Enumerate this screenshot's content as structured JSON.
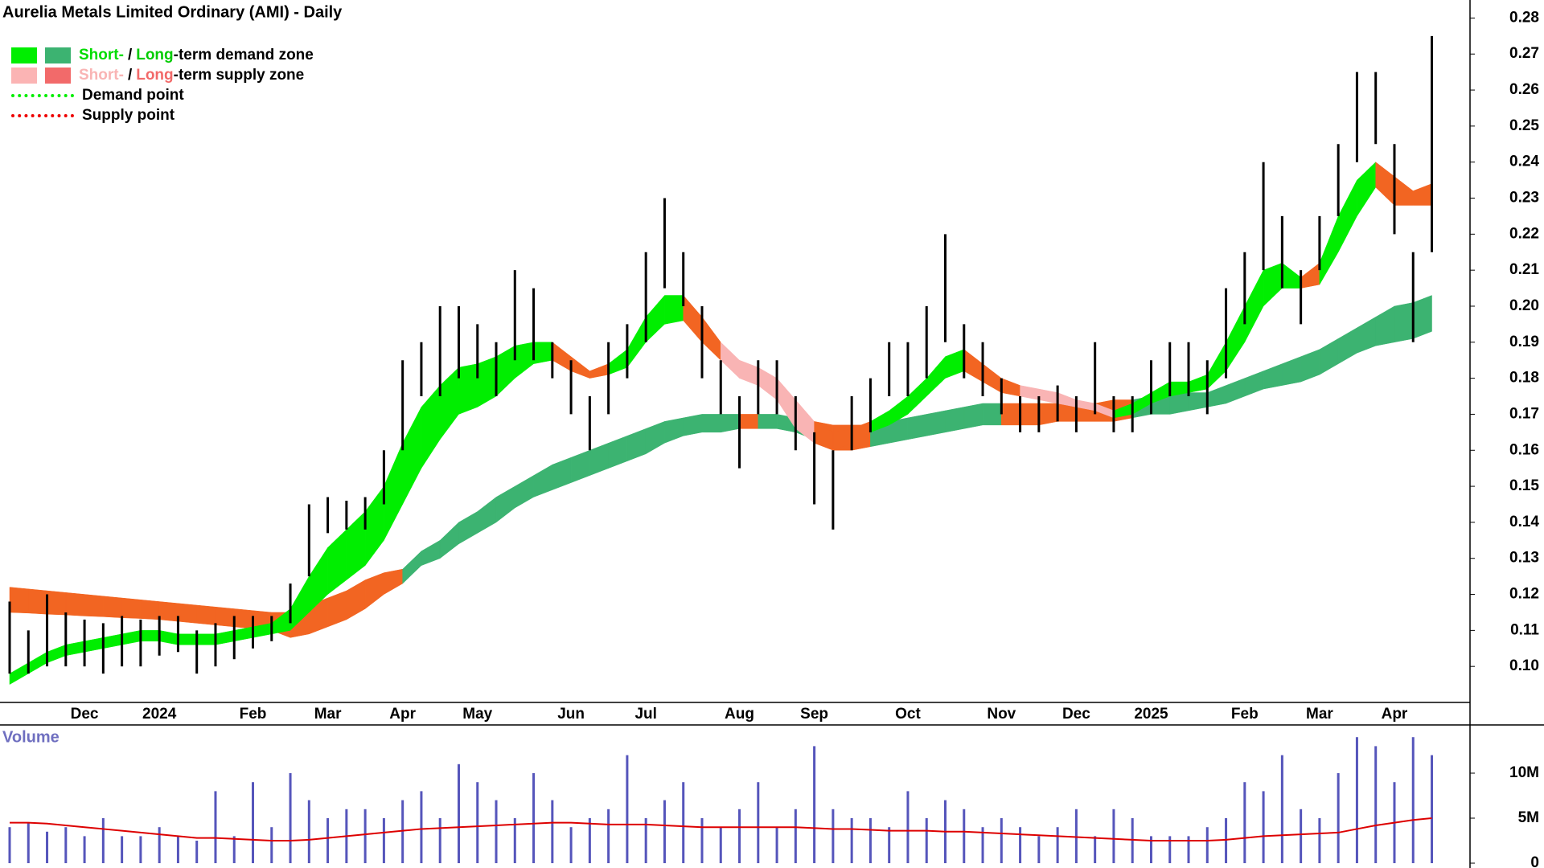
{
  "chart_data": [
    {
      "type": "ohlc",
      "title": "Aurelia Metals Limited Ordinary (AMI) - Daily",
      "legend": [
        {
          "parts": [
            "Short-",
            "/",
            "Long",
            "-term demand zone"
          ]
        },
        {
          "parts": [
            "Short-",
            "/",
            "Long",
            "-term supply zone"
          ]
        },
        {
          "label": "Demand point"
        },
        {
          "label": "Supply point"
        }
      ],
      "categories": [
        null,
        null,
        null,
        null,
        "Dec",
        null,
        null,
        null,
        "2024",
        null,
        null,
        null,
        null,
        "Feb",
        null,
        null,
        null,
        "Mar",
        null,
        null,
        null,
        "Apr",
        null,
        null,
        null,
        "May",
        null,
        null,
        null,
        null,
        "Jun",
        null,
        null,
        null,
        "Jul",
        null,
        null,
        null,
        null,
        "Aug",
        null,
        null,
        null,
        "Sep",
        null,
        null,
        null,
        null,
        "Oct",
        null,
        null,
        null,
        null,
        "Nov",
        null,
        null,
        null,
        "Dec",
        null,
        null,
        null,
        "2025",
        null,
        null,
        null,
        null,
        "Feb",
        null,
        null,
        null,
        "Mar",
        null,
        null,
        null,
        "Apr",
        null,
        null
      ],
      "high": [
        0.118,
        0.11,
        0.12,
        0.115,
        0.113,
        0.112,
        0.114,
        0.113,
        0.114,
        0.114,
        0.11,
        0.112,
        0.114,
        0.114,
        0.114,
        0.123,
        0.145,
        0.147,
        0.146,
        0.147,
        0.16,
        0.185,
        0.19,
        0.2,
        0.2,
        0.195,
        0.19,
        0.21,
        0.205,
        0.19,
        0.185,
        0.175,
        0.19,
        0.195,
        0.215,
        0.23,
        0.215,
        0.2,
        0.185,
        0.175,
        0.185,
        0.185,
        0.175,
        0.165,
        0.16,
        0.175,
        0.18,
        0.19,
        0.19,
        0.2,
        0.22,
        0.195,
        0.19,
        0.18,
        0.175,
        0.175,
        0.178,
        0.175,
        0.19,
        0.175,
        0.175,
        0.185,
        0.19,
        0.19,
        0.185,
        0.205,
        0.215,
        0.24,
        0.225,
        0.21,
        0.225,
        0.245,
        0.265,
        0.265,
        0.245,
        0.215,
        0.275
      ],
      "low": [
        0.098,
        0.098,
        0.1,
        0.1,
        0.1,
        0.098,
        0.1,
        0.1,
        0.103,
        0.104,
        0.098,
        0.1,
        0.102,
        0.105,
        0.107,
        0.112,
        0.125,
        0.137,
        0.138,
        0.138,
        0.145,
        0.16,
        0.175,
        0.175,
        0.18,
        0.18,
        0.175,
        0.185,
        0.185,
        0.18,
        0.17,
        0.16,
        0.17,
        0.18,
        0.19,
        0.205,
        0.2,
        0.18,
        0.17,
        0.155,
        0.17,
        0.17,
        0.16,
        0.145,
        0.138,
        0.16,
        0.165,
        0.175,
        0.175,
        0.18,
        0.19,
        0.18,
        0.175,
        0.17,
        0.165,
        0.165,
        0.168,
        0.165,
        0.17,
        0.165,
        0.165,
        0.17,
        0.175,
        0.175,
        0.17,
        0.18,
        0.195,
        0.21,
        0.205,
        0.195,
        0.21,
        0.225,
        0.24,
        0.245,
        0.22,
        0.19,
        0.215
      ],
      "bar_color": "#000000",
      "long_term_zone": {
        "lower": [
          0.115,
          0.1148,
          0.1145,
          0.1143,
          0.114,
          0.1138,
          0.1135,
          0.1133,
          0.113,
          0.1125,
          0.112,
          0.1115,
          0.111,
          0.1105,
          0.11,
          0.108,
          0.109,
          0.111,
          0.113,
          0.116,
          0.12,
          0.123,
          0.128,
          0.13,
          0.134,
          0.137,
          0.14,
          0.144,
          0.147,
          0.149,
          0.151,
          0.153,
          0.155,
          0.157,
          0.159,
          0.162,
          0.164,
          0.165,
          0.165,
          0.166,
          0.166,
          0.166,
          0.165,
          0.163,
          0.16,
          0.16,
          0.161,
          0.162,
          0.163,
          0.164,
          0.165,
          0.166,
          0.167,
          0.167,
          0.167,
          0.167,
          0.168,
          0.168,
          0.168,
          0.168,
          0.169,
          0.17,
          0.17,
          0.171,
          0.172,
          0.173,
          0.175,
          0.177,
          0.178,
          0.179,
          0.181,
          0.184,
          0.187,
          0.189,
          0.19,
          0.191,
          0.193
        ],
        "upper": [
          0.122,
          0.1215,
          0.121,
          0.1205,
          0.12,
          0.1195,
          0.119,
          0.1185,
          0.118,
          0.1175,
          0.117,
          0.1165,
          0.116,
          0.1155,
          0.115,
          0.115,
          0.117,
          0.119,
          0.121,
          0.124,
          0.126,
          0.127,
          0.132,
          0.135,
          0.14,
          0.143,
          0.147,
          0.15,
          0.153,
          0.156,
          0.158,
          0.16,
          0.162,
          0.164,
          0.166,
          0.168,
          0.169,
          0.17,
          0.17,
          0.17,
          0.17,
          0.17,
          0.169,
          0.168,
          0.167,
          0.167,
          0.167,
          0.168,
          0.169,
          0.17,
          0.171,
          0.172,
          0.173,
          0.173,
          0.173,
          0.173,
          0.173,
          0.173,
          0.173,
          0.174,
          0.174,
          0.175,
          0.175,
          0.176,
          0.176,
          0.178,
          0.18,
          0.182,
          0.184,
          0.186,
          0.188,
          0.191,
          0.194,
          0.197,
          0.2,
          0.201,
          0.203
        ],
        "colors": [
          "#f26522",
          "#f26522",
          "#f26522",
          "#f26522",
          "#f26522",
          "#f26522",
          "#f26522",
          "#f26522",
          "#f26522",
          "#f26522",
          "#f26522",
          "#f26522",
          "#f26522",
          "#f26522",
          "#f26522",
          "#f26522",
          "#f26522",
          "#f26522",
          "#f26522",
          "#f26522",
          "#f26522",
          "#3cb371",
          "#3cb371",
          "#3cb371",
          "#3cb371",
          "#3cb371",
          "#3cb371",
          "#3cb371",
          "#3cb371",
          "#3cb371",
          "#3cb371",
          "#3cb371",
          "#3cb371",
          "#3cb371",
          "#3cb371",
          "#3cb371",
          "#3cb371",
          "#3cb371",
          "#3cb371",
          "#f26522",
          "#3cb371",
          "#3cb371",
          "#3cb371",
          "#f26522",
          "#f26522",
          "#f26522",
          "#3cb371",
          "#3cb371",
          "#3cb371",
          "#3cb371",
          "#3cb371",
          "#3cb371",
          "#3cb371",
          "#f26522",
          "#f26522",
          "#f26522",
          "#f26522",
          "#f26522",
          "#f26522",
          "#f26522",
          "#3cb371",
          "#3cb371",
          "#3cb371",
          "#3cb371",
          "#3cb371",
          "#3cb371",
          "#3cb371",
          "#3cb371",
          "#3cb371",
          "#3cb371",
          "#3cb371",
          "#3cb371",
          "#3cb371",
          "#3cb371",
          "#3cb371",
          "#3cb371"
        ]
      },
      "short_term_zone": {
        "lower": [
          0.095,
          0.098,
          0.101,
          0.103,
          0.104,
          0.105,
          0.106,
          0.107,
          0.107,
          0.106,
          0.106,
          0.106,
          0.107,
          0.108,
          0.109,
          0.11,
          0.115,
          0.12,
          0.124,
          0.128,
          0.135,
          0.145,
          0.155,
          0.163,
          0.17,
          0.172,
          0.175,
          0.18,
          0.184,
          0.185,
          0.182,
          0.18,
          0.181,
          0.183,
          0.19,
          0.195,
          0.196,
          0.19,
          0.185,
          0.18,
          0.178,
          0.174,
          0.166,
          0.162,
          0.16,
          0.162,
          0.165,
          0.167,
          0.17,
          0.175,
          0.18,
          0.182,
          0.179,
          0.176,
          0.175,
          0.174,
          0.173,
          0.172,
          0.171,
          0.169,
          0.17,
          0.173,
          0.175,
          0.176,
          0.177,
          0.182,
          0.19,
          0.2,
          0.205,
          0.205,
          0.206,
          0.215,
          0.225,
          0.233,
          0.228,
          0.228,
          0.228
        ],
        "upper": [
          0.098,
          0.101,
          0.104,
          0.106,
          0.107,
          0.108,
          0.109,
          0.11,
          0.11,
          0.109,
          0.109,
          0.109,
          0.11,
          0.111,
          0.112,
          0.116,
          0.125,
          0.133,
          0.138,
          0.143,
          0.15,
          0.162,
          0.172,
          0.178,
          0.183,
          0.184,
          0.186,
          0.189,
          0.19,
          0.19,
          0.186,
          0.182,
          0.184,
          0.188,
          0.197,
          0.203,
          0.203,
          0.197,
          0.19,
          0.185,
          0.183,
          0.18,
          0.174,
          0.168,
          0.165,
          0.166,
          0.168,
          0.171,
          0.175,
          0.18,
          0.186,
          0.188,
          0.184,
          0.18,
          0.178,
          0.177,
          0.176,
          0.174,
          0.173,
          0.171,
          0.173,
          0.176,
          0.179,
          0.179,
          0.181,
          0.19,
          0.2,
          0.21,
          0.212,
          0.208,
          0.212,
          0.225,
          0.235,
          0.24,
          0.236,
          0.232,
          0.234
        ],
        "colors": [
          "#00ee00",
          "#00ee00",
          "#00ee00",
          "#00ee00",
          "#00ee00",
          "#00ee00",
          "#00ee00",
          "#00ee00",
          "#00ee00",
          "#00ee00",
          "#00ee00",
          "#00ee00",
          "#00ee00",
          "#00ee00",
          "#00ee00",
          "#00ee00",
          "#00ee00",
          "#00ee00",
          "#00ee00",
          "#00ee00",
          "#00ee00",
          "#00ee00",
          "#00ee00",
          "#00ee00",
          "#00ee00",
          "#00ee00",
          "#00ee00",
          "#00ee00",
          "#00ee00",
          "#f26522",
          "#f26522",
          "#f26522",
          "#00ee00",
          "#00ee00",
          "#00ee00",
          "#00ee00",
          "#f26522",
          "#f26522",
          "#f9b4b4",
          "#f9b4b4",
          "#f9b4b4",
          "#f9b4b4",
          "#f9b4b4",
          "#f26522",
          "#f26522",
          "#f26522",
          "#00ee00",
          "#00ee00",
          "#00ee00",
          "#00ee00",
          "#00ee00",
          "#f26522",
          "#f26522",
          "#f26522",
          "#f9b4b4",
          "#f9b4b4",
          "#f9b4b4",
          "#f9b4b4",
          "#f9b4b4",
          "#00ee00",
          "#00ee00",
          "#00ee00",
          "#00ee00",
          "#00ee00",
          "#00ee00",
          "#00ee00",
          "#00ee00",
          "#00ee00",
          "#00ee00",
          "#f26522",
          "#00ee00",
          "#00ee00",
          "#00ee00",
          "#f26522",
          "#f26522",
          "#f26522"
        ]
      },
      "ylim": [
        0.09,
        0.285
      ],
      "yticks": [
        {
          "value": 0.1,
          "label": "0.10"
        },
        0.11,
        0.12,
        0.13,
        0.14,
        0.15,
        0.16,
        0.17,
        0.18,
        0.19,
        {
          "value": 0.2,
          "label": "0.20"
        },
        0.21,
        0.22,
        0.23,
        0.24,
        0.25,
        0.26,
        0.27,
        0.28
      ]
    },
    {
      "type": "bar",
      "title": "Volume",
      "color": "#5555bb",
      "values": [
        4000000,
        4500000,
        3500000,
        4000000,
        3000000,
        5000000,
        3000000,
        3000000,
        4000000,
        3000000,
        2500000,
        8000000,
        3000000,
        9000000,
        4000000,
        10000000,
        7000000,
        5000000,
        6000000,
        6000000,
        5000000,
        7000000,
        8000000,
        5000000,
        11000000,
        9000000,
        7000000,
        5000000,
        10000000,
        7000000,
        4000000,
        5000000,
        6000000,
        12000000,
        5000000,
        7000000,
        9000000,
        5000000,
        4000000,
        6000000,
        9000000,
        4000000,
        6000000,
        13000000,
        6000000,
        5000000,
        5000000,
        4000000,
        8000000,
        5000000,
        7000000,
        6000000,
        4000000,
        5000000,
        4000000,
        3000000,
        4000000,
        6000000,
        3000000,
        6000000,
        5000000,
        3000000,
        3000000,
        3000000,
        4000000,
        5000000,
        9000000,
        8000000,
        12000000,
        6000000,
        5000000,
        10000000,
        14000000,
        13000000,
        9000000,
        14000000,
        12000000
      ],
      "average": {
        "color": "#dd0000",
        "values": [
          4500000,
          4500000,
          4400000,
          4200000,
          4000000,
          3800000,
          3600000,
          3400000,
          3200000,
          3000000,
          2800000,
          2800000,
          2700000,
          2600000,
          2500000,
          2500000,
          2600000,
          2800000,
          3000000,
          3200000,
          3400000,
          3600000,
          3800000,
          3900000,
          4000000,
          4100000,
          4200000,
          4300000,
          4400000,
          4500000,
          4500000,
          4400000,
          4300000,
          4300000,
          4300000,
          4200000,
          4100000,
          4000000,
          4000000,
          4000000,
          4000000,
          4000000,
          4000000,
          3900000,
          3800000,
          3800000,
          3700000,
          3600000,
          3600000,
          3600000,
          3500000,
          3500000,
          3400000,
          3300000,
          3200000,
          3100000,
          3000000,
          2900000,
          2800000,
          2700000,
          2600000,
          2500000,
          2500000,
          2500000,
          2500000,
          2600000,
          2800000,
          3000000,
          3100000,
          3200000,
          3300000,
          3400000,
          3800000,
          4200000,
          4500000,
          4800000,
          5000000
        ]
      },
      "ylim": [
        0,
        15000000
      ],
      "yticks": [
        0,
        {
          "value": 5000000,
          "label": "5M"
        },
        {
          "value": 10000000,
          "label": "10M"
        }
      ]
    }
  ]
}
